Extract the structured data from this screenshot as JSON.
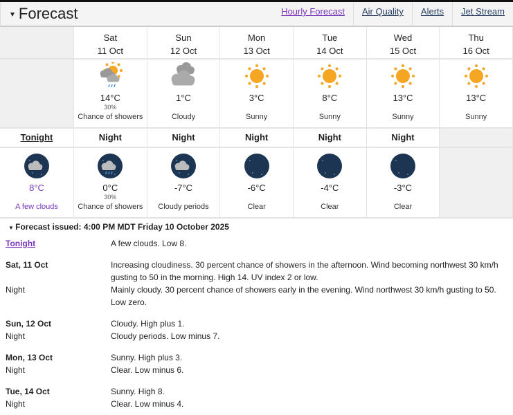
{
  "header": {
    "title": "Forecast",
    "links": [
      "Hourly Forecast",
      "Air Quality",
      "Alerts",
      "Jet Stream"
    ]
  },
  "days": [
    {
      "name": "Sat",
      "date": "11 Oct",
      "icon": "sun-cloud-showers",
      "temp": "14°C",
      "pop": "30%",
      "cond": "Chance of showers"
    },
    {
      "name": "Sun",
      "date": "12 Oct",
      "icon": "cloudy",
      "temp": "1°C",
      "pop": "",
      "cond": "Cloudy"
    },
    {
      "name": "Mon",
      "date": "13 Oct",
      "icon": "sunny",
      "temp": "3°C",
      "pop": "",
      "cond": "Sunny"
    },
    {
      "name": "Tue",
      "date": "14 Oct",
      "icon": "sunny",
      "temp": "8°C",
      "pop": "",
      "cond": "Sunny"
    },
    {
      "name": "Wed",
      "date": "15 Oct",
      "icon": "sunny",
      "temp": "13°C",
      "pop": "",
      "cond": "Sunny"
    },
    {
      "name": "Thu",
      "date": "16 Oct",
      "icon": "sunny",
      "temp": "13°C",
      "pop": "",
      "cond": "Sunny"
    }
  ],
  "nights": [
    {
      "name": "Tonight",
      "icon": "moon-cloud",
      "temp": "8°C",
      "pop": "",
      "cond": "A few clouds"
    },
    {
      "name": "Night",
      "icon": "moon-cloud-showers",
      "temp": "0°C",
      "pop": "30%",
      "cond": "Chance of showers"
    },
    {
      "name": "Night",
      "icon": "moon-cloud",
      "temp": "-7°C",
      "pop": "",
      "cond": "Cloudy periods"
    },
    {
      "name": "Night",
      "icon": "moon-clear",
      "temp": "-6°C",
      "pop": "",
      "cond": "Clear"
    },
    {
      "name": "Night",
      "icon": "moon-clear",
      "temp": "-4°C",
      "pop": "",
      "cond": "Clear"
    },
    {
      "name": "Night",
      "icon": "moon-clear",
      "temp": "-3°C",
      "pop": "",
      "cond": "Clear"
    }
  ],
  "issued": "Forecast issued: 4:00 PM MDT Friday 10 October 2025",
  "details": [
    {
      "label": "Tonight",
      "text": "A few clouds. Low 8."
    },
    {
      "label": "Sat, 11 Oct",
      "text": "Increasing cloudiness. 30 percent chance of showers in the afternoon. Wind becoming northwest 30 km/h gusting to 50 in the morning. High 14. UV index 2 or low."
    },
    {
      "label": "Night",
      "text": "Mainly cloudy. 30 percent chance of showers early in the evening. Wind northwest 30 km/h gusting to 50. Low zero."
    },
    {
      "label": "Sun, 12 Oct",
      "text": "Cloudy. High plus 1."
    },
    {
      "label": "Night",
      "text": "Cloudy periods. Low minus 7."
    },
    {
      "label": "Mon, 13 Oct",
      "text": "Sunny. High plus 3."
    },
    {
      "label": "Night",
      "text": "Clear. Low minus 6."
    },
    {
      "label": "Tue, 14 Oct",
      "text": "Sunny. High 8."
    },
    {
      "label": "Night",
      "text": "Clear. Low minus 4."
    }
  ],
  "colors": {
    "link": "#284162",
    "visited": "#7834bc",
    "sun": "#f5a623",
    "night": "#1c3553"
  }
}
